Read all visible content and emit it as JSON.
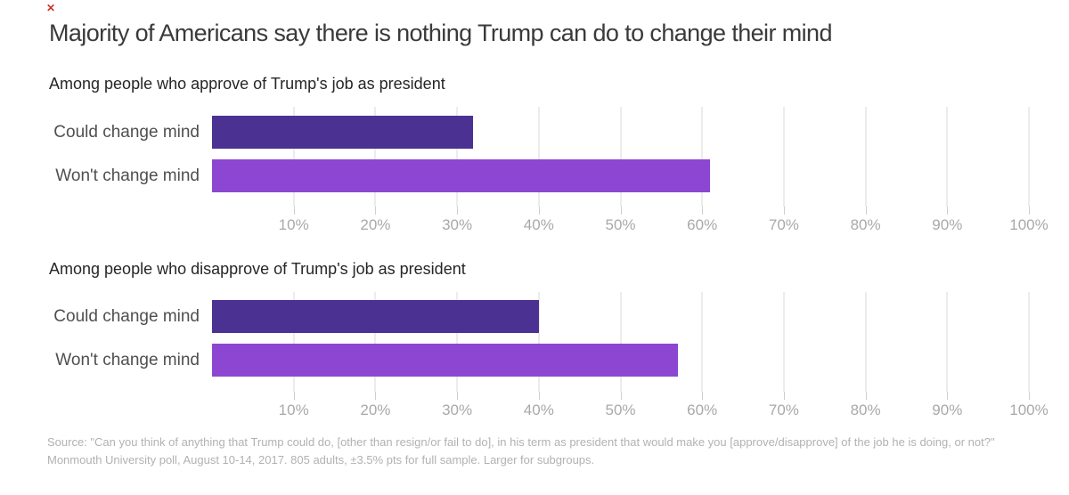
{
  "title": "Majority of Americans say there is nothing Trump can do to change their mind",
  "artifact": {
    "broken_image_glyph": "✕",
    "color": "#c9342a"
  },
  "colors": {
    "bar_could_change": "#4a3192",
    "bar_wont_change": "#8c46d2",
    "gridline": "#ececec",
    "axis_text": "#a9a9a9",
    "row_label_text": "#4f4f4f",
    "title_text": "#3a3a3a",
    "subtitle_text": "#262626",
    "source_text": "#b2b2b2"
  },
  "source": {
    "line1": "Source: \"Can you think of anything that Trump could do, [other than resign/or fail to do], in his term as president that would make you [approve/disapprove] of the job he is doing, or not?\"",
    "line2": "Monmouth University poll, August 10-14, 2017. 805 adults, ±3.5% pts for full sample. Larger for subgroups."
  },
  "chart_data": [
    {
      "type": "bar",
      "orientation": "horizontal",
      "title": "Among people who approve of Trump's job as president",
      "categories": [
        "Could change mind",
        "Won't change mind"
      ],
      "values": [
        32,
        61
      ],
      "value_unit": "%",
      "xlim": [
        0,
        100
      ],
      "x_ticks": [
        10,
        20,
        30,
        40,
        50,
        60,
        70,
        80,
        90,
        100
      ],
      "x_tick_labels": [
        "10%",
        "20%",
        "30%",
        "40%",
        "50%",
        "60%",
        "70%",
        "80%",
        "90%",
        "100%"
      ],
      "grid": true,
      "legend": false,
      "bar_colors": [
        "#4a3192",
        "#8c46d2"
      ]
    },
    {
      "type": "bar",
      "orientation": "horizontal",
      "title": "Among people who disapprove of Trump's job as president",
      "categories": [
        "Could change mind",
        "Won't change mind"
      ],
      "values": [
        40,
        57
      ],
      "value_unit": "%",
      "xlim": [
        0,
        100
      ],
      "x_ticks": [
        10,
        20,
        30,
        40,
        50,
        60,
        70,
        80,
        90,
        100
      ],
      "x_tick_labels": [
        "10%",
        "20%",
        "30%",
        "40%",
        "50%",
        "60%",
        "70%",
        "80%",
        "90%",
        "100%"
      ],
      "grid": true,
      "legend": false,
      "bar_colors": [
        "#4a3192",
        "#8c46d2"
      ]
    }
  ]
}
